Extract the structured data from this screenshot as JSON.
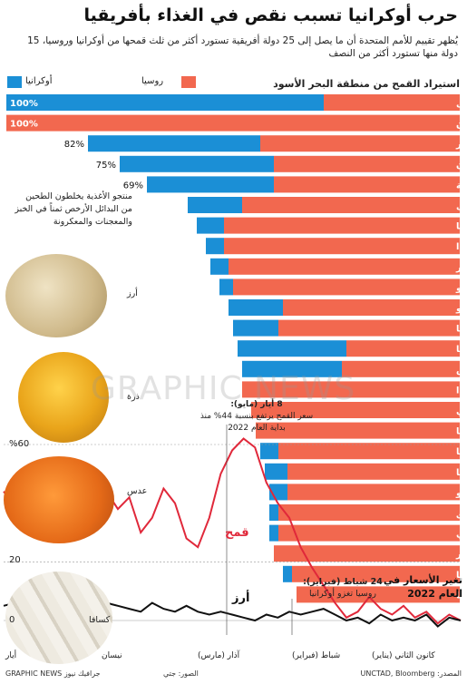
{
  "title": "حرب أوكرانيا تسبب نقص في الغذاء بأفريقيا",
  "subtitle": "يُظهر تقييم للأمم المتحدة أن ما يصل إلى 25 دولة أفريقية تستورد أكثر من ثلث قمحها من أوكرانيا وروسيا، 15 دولة منها تستورد أكثر من النصف",
  "colors": {
    "ukraine": "#1b8fd6",
    "russia": "#f2684f",
    "wheat_line": "#e0283a",
    "rice_line": "#111111"
  },
  "legend": {
    "ukraine": "أوكرانيا",
    "russia": "روسيا"
  },
  "chart_data": [
    {
      "type": "bar",
      "title": "استيراد القمح من منطقة البحر الأسود",
      "categories": [
        "الصومال",
        "بنين",
        "مصر",
        "السودان",
        "جمهورية الكونغو الديمقراطية",
        "السنغال",
        "تنزانيا",
        "رواندا",
        "مدغشقر",
        "الكونغو",
        "بوركينا فاسو",
        "غامبيا",
        "ليبيا",
        "تونس",
        "أوغندا",
        "بوروندي",
        "ناميبيا",
        "موريتانيا",
        "كينيا",
        "توغو",
        "موزمبيق",
        "ملاوي",
        "الرأس الأخضر",
        "جنوب أفريقيا",
        "إريتريا"
      ],
      "series": [
        {
          "name": "أوكرانيا",
          "values": [
            70,
            0,
            38,
            34,
            28,
            12,
            6,
            4,
            4,
            3,
            12,
            10,
            24,
            22,
            0,
            0,
            0,
            4,
            5,
            4,
            2,
            2,
            0,
            2,
            0
          ]
        },
        {
          "name": "روسيا",
          "values": [
            30,
            100,
            44,
            41,
            41,
            48,
            52,
            52,
            51,
            50,
            39,
            40,
            25,
            26,
            48,
            46,
            45,
            40,
            38,
            38,
            40,
            40,
            41,
            37,
            36
          ]
        }
      ],
      "total_labels": [
        "100%",
        "100%",
        "82%",
        "75%",
        "69%"
      ]
    },
    {
      "type": "line",
      "title": "تغير الأسعار في العام 2022",
      "ylim": [
        -5,
        65
      ],
      "yticks": [
        "60%",
        "20",
        "0"
      ],
      "xticks": [
        "كانون الثاني (يناير)",
        "شباط (فبراير)",
        "آذار (مارس)",
        "نيسان",
        "أيار"
      ],
      "series": [
        {
          "name": "قمح",
          "values": [
            0,
            2,
            -1,
            3,
            1,
            5,
            2,
            4,
            8,
            3,
            1,
            6,
            12,
            18,
            25,
            35,
            40,
            47,
            59,
            62,
            58,
            50,
            35,
            25,
            28,
            40,
            45,
            35,
            30,
            42,
            38,
            44,
            48,
            44,
            43,
            40,
            38,
            35,
            37,
            39,
            44
          ]
        },
        {
          "name": "أرز",
          "values": [
            0,
            1,
            -2,
            2,
            0,
            1,
            0,
            2,
            -1,
            1,
            0,
            2,
            4,
            3,
            2,
            3,
            1,
            2,
            0,
            1,
            2,
            3,
            2,
            3,
            5,
            3,
            4,
            6,
            3,
            4,
            5,
            6,
            7,
            5,
            6,
            8,
            7,
            6,
            7,
            6,
            5
          ]
        }
      ]
    }
  ],
  "labels": {
    "substitutes": "منتجو الأغذية يخلطون الطحين من البدائل الأرخص ثمناً في الخبز والمعجنات والمعكرونة",
    "rice": "أرز",
    "corn": "ذرة",
    "lentil": "عدس",
    "cassava": "كسافا",
    "wheat_series": "قمح",
    "rice_series": "أرز",
    "may8_title": "8 أيار (مايو):",
    "may8_body": "سعر القمح يرتفع بنسبة 44% منذ بداية العام 2022",
    "feb24_title": "24 شباط (فبراير):",
    "feb24_body": "روسيا تغزو أوكرانيا",
    "prices_heading": "تغير الأسعار في العام 2022",
    "y60": "%60",
    "y20": "20",
    "y0": "0"
  },
  "footer": {
    "left": "GRAPHIC NEWS جرافيك نيوز",
    "mid": "الصور: جتي",
    "right": "المصدر: UNCTAD, Bloomberg"
  },
  "watermark": "GRAPHIC NEWS"
}
